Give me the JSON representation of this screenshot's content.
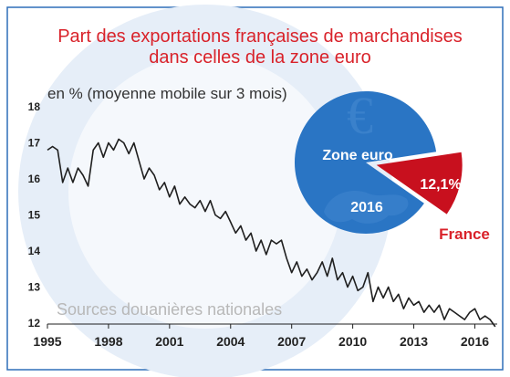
{
  "chart_data": [
    {
      "type": "line",
      "title": "Part des exportations françaises de marchandises dans celles de la zone euro",
      "title_lines": [
        "Part des exportations françaises de marchandises",
        "dans celles de la zone euro"
      ],
      "subtitle": "en % (moyenne mobile sur 3 mois)",
      "source": "Sources douanières nationales",
      "xlim": [
        1995,
        2017.1
      ],
      "ylim": [
        12,
        18
      ],
      "x_ticks": [
        1995,
        1998,
        2001,
        2004,
        2007,
        2010,
        2013,
        2016
      ],
      "y_ticks": [
        12,
        13,
        14,
        15,
        16,
        17,
        18
      ],
      "grid": false,
      "series_color": "#1f1f1f",
      "series": [
        {
          "x": [
            1995.0,
            1995.25,
            1995.5,
            1995.75,
            1996.0,
            1996.25,
            1996.5,
            1996.75,
            1997.0,
            1997.25,
            1997.5,
            1997.75,
            1998.0,
            1998.25,
            1998.5,
            1998.75,
            1999.0,
            1999.25,
            1999.5,
            1999.75,
            2000.0,
            2000.25,
            2000.5,
            2000.75,
            2001.0,
            2001.25,
            2001.5,
            2001.75,
            2002.0,
            2002.25,
            2002.5,
            2002.75,
            2003.0,
            2003.25,
            2003.5,
            2003.75,
            2004.0,
            2004.25,
            2004.5,
            2004.75,
            2005.0,
            2005.25,
            2005.5,
            2005.75,
            2006.0,
            2006.25,
            2006.5,
            2006.75,
            2007.0,
            2007.25,
            2007.5,
            2007.75,
            2008.0,
            2008.25,
            2008.5,
            2008.75,
            2009.0,
            2009.25,
            2009.5,
            2009.75,
            2010.0,
            2010.25,
            2010.5,
            2010.75,
            2011.0,
            2011.25,
            2011.5,
            2011.75,
            2012.0,
            2012.25,
            2012.5,
            2012.75,
            2013.0,
            2013.25,
            2013.5,
            2013.75,
            2014.0,
            2014.25,
            2014.5,
            2014.75,
            2015.0,
            2015.25,
            2015.5,
            2015.75,
            2016.0,
            2016.25,
            2016.5,
            2016.75,
            2017.0
          ],
          "values": [
            16.8,
            16.9,
            16.8,
            15.9,
            16.3,
            15.9,
            16.3,
            16.1,
            15.8,
            16.8,
            17.0,
            16.6,
            17.0,
            16.8,
            17.1,
            17.0,
            16.7,
            17.0,
            16.5,
            16.0,
            16.3,
            16.1,
            15.7,
            15.9,
            15.5,
            15.8,
            15.3,
            15.5,
            15.3,
            15.2,
            15.4,
            15.1,
            15.4,
            15.0,
            14.9,
            15.1,
            14.8,
            14.5,
            14.7,
            14.3,
            14.5,
            14.0,
            14.3,
            13.9,
            14.3,
            14.2,
            14.3,
            13.8,
            13.4,
            13.7,
            13.3,
            13.5,
            13.2,
            13.4,
            13.7,
            13.3,
            13.8,
            13.2,
            13.4,
            13.0,
            13.3,
            12.9,
            13.0,
            13.4,
            12.6,
            13.0,
            12.7,
            13.0,
            12.6,
            12.8,
            12.4,
            12.7,
            12.5,
            12.6,
            12.3,
            12.5,
            12.3,
            12.5,
            12.1,
            12.4,
            12.3,
            12.2,
            12.1,
            12.3,
            12.4,
            12.1,
            12.2,
            12.1,
            11.9
          ]
        }
      ]
    },
    {
      "type": "pie",
      "categories": [
        "Zone euro",
        "France"
      ],
      "values": [
        87.9,
        12.1
      ],
      "colors": [
        "#2a75c4",
        "#c8101e"
      ],
      "slice_label": "12,1%",
      "center_label": "Zone euro",
      "year_label": "2016"
    }
  ]
}
